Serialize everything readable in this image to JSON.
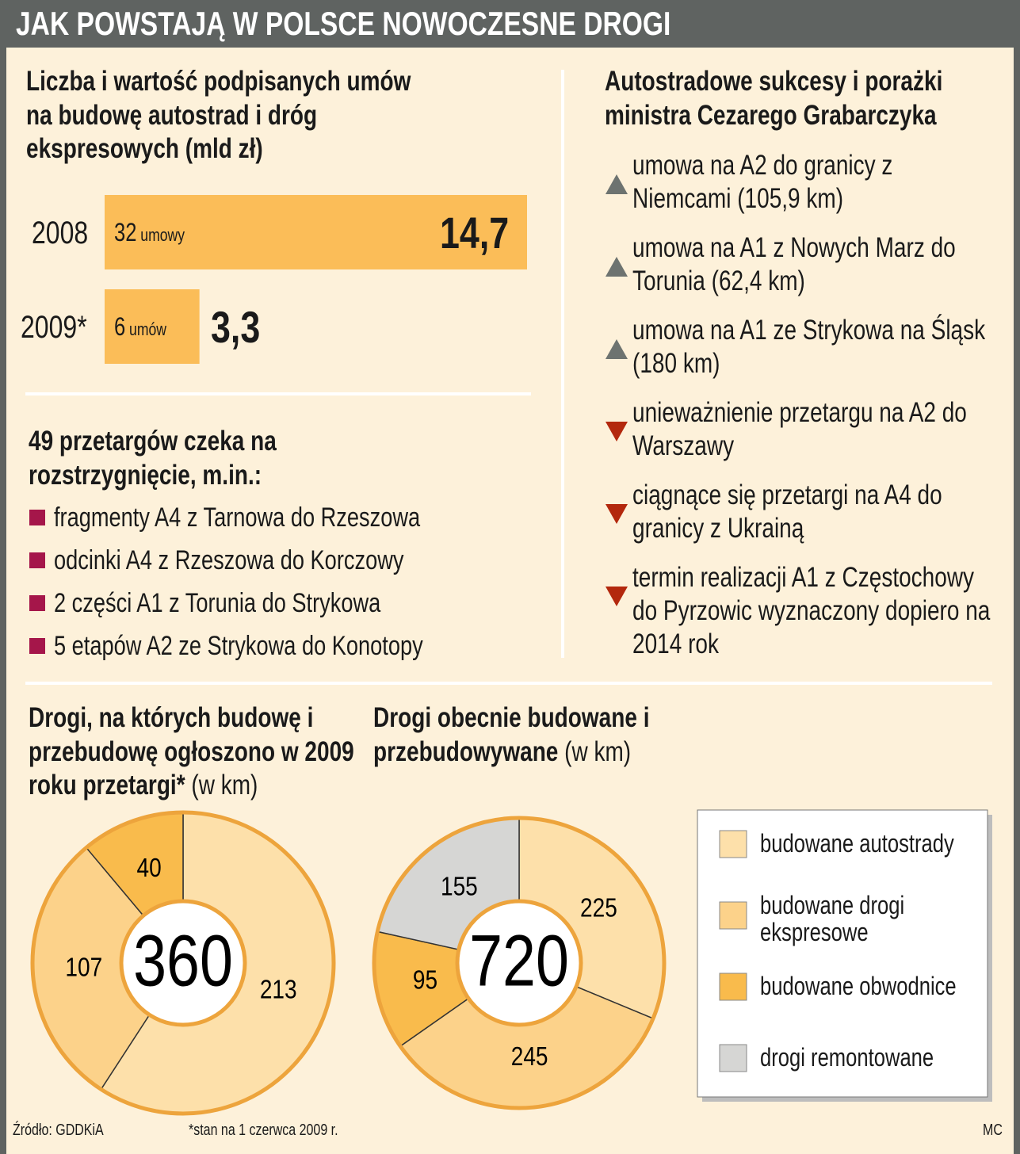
{
  "header": {
    "title": "JAK POWSTAJĄ W POLSCE NOWOCZESNE DROGI"
  },
  "chart_data": [
    {
      "type": "bar",
      "title": "Liczba i wartość podpisanych umów na budowę autostrad i dróg ekspresowych (mld zł)",
      "categories": [
        "2008",
        "2009*"
      ],
      "values": [
        14.7,
        3.3
      ],
      "value_labels": [
        "14,7",
        "3,3"
      ],
      "contract_counts": [
        32,
        6
      ],
      "contract_units": [
        "umowy",
        "umów"
      ],
      "color": "#fbbd58"
    },
    {
      "type": "pie",
      "title": "Drogi, na których budowę i przebudowę ogłoszono w 2009 roku przetargi*",
      "unit": "(w km)",
      "total": 360,
      "values": [
        213,
        107,
        40
      ],
      "colors": [
        "#fde0aa",
        "#fcd28a",
        "#f9bb4c"
      ]
    },
    {
      "type": "pie",
      "title": "Drogi obecnie budowane i przebudowywane",
      "unit": "(w km)",
      "total": 720,
      "values": [
        225,
        245,
        95,
        155
      ],
      "colors": [
        "#fde0aa",
        "#fcd28a",
        "#f9bb4c",
        "#d6d6d4"
      ]
    }
  ],
  "legend": {
    "items": [
      {
        "name": "budowane autostrady",
        "color": "#fde0aa"
      },
      {
        "name": "budowane drogi ekspresowe",
        "color": "#fcd28a"
      },
      {
        "name": "budowane obwodnice",
        "color": "#f9bb4c"
      },
      {
        "name": "drogi remontowane",
        "color": "#d6d6d4"
      }
    ]
  },
  "tenders": {
    "title": "49 przetargów czeka na rozstrzygnięcie, m.in.:",
    "items": [
      "fragmenty A4 z Tarnowa do Rzeszowa",
      "odcinki A4 z Rzeszowa do Korczowy",
      "2 części A1 z Torunia do Strykowa",
      "5 etapów A2 ze Strykowa do Konotopy"
    ]
  },
  "minister": {
    "title": "Autostradowe sukcesy i porażki ministra Cezarego Grabarczyka",
    "items": [
      {
        "trend": "up",
        "text": "umowa na A2 do granicy z Niemcami (105,9 km)"
      },
      {
        "trend": "up",
        "text": "umowa na A1 z Nowych Marz do Torunia (62,4 km)"
      },
      {
        "trend": "up",
        "text": "umowa na A1 ze Strykowa na Śląsk (180 km)"
      },
      {
        "trend": "down",
        "text": "unieważnienie przetargu na A2 do Warszawy"
      },
      {
        "trend": "down",
        "text": "ciągnące się przetargi na A4 do granicy z Ukrainą"
      },
      {
        "trend": "down",
        "text": "termin realizacji A1 z Częstochowy do Pyrzowic wyznaczony dopiero na 2014 rok"
      }
    ]
  },
  "footer": {
    "source": "Źródło: GDDKiA",
    "note": "*stan na 1 czerwca 2009 r.",
    "author": "MC"
  }
}
